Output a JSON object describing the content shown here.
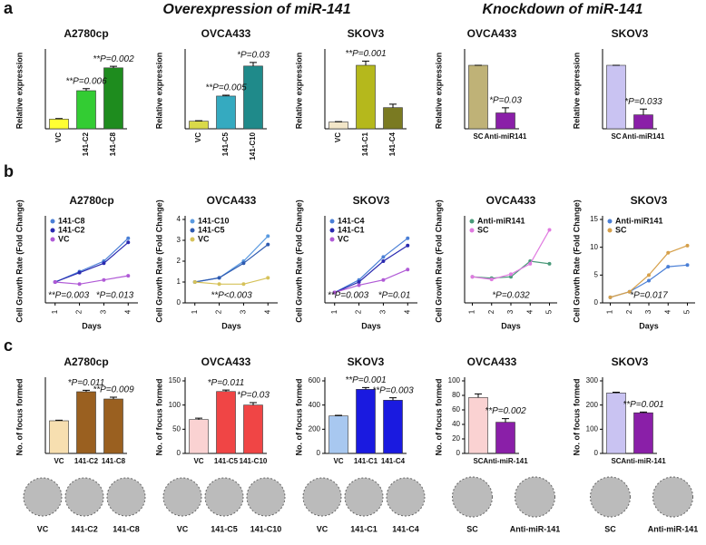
{
  "panel_labels": [
    "a",
    "b",
    "c"
  ],
  "headers": [
    "Overexpression of miR-141",
    "Knockdown of miR-141"
  ],
  "chart_data": [
    {
      "type": "bar",
      "title": "A2780cp",
      "ylabel": "Relative expression",
      "categories": [
        "VC",
        "141-C2",
        "141-C8"
      ],
      "values": [
        1.9,
        7.5,
        12
      ],
      "errors": [
        0.1,
        0.4,
        0.3
      ],
      "colors": [
        "#ffff33",
        "#33cc33",
        "#1e8c1e"
      ],
      "ylim": [
        0,
        15
      ],
      "annotations": [
        "**P=0.006",
        "**P=0.002"
      ]
    },
    {
      "type": "bar",
      "title": "OVCA433",
      "ylabel": "Relative expression",
      "categories": [
        "VC",
        "141-C5",
        "141-C10"
      ],
      "values": [
        1.7,
        7.3,
        14
      ],
      "errors": [
        0.1,
        0.2,
        0.8
      ],
      "colors": [
        "#d9d94a",
        "#35aac0",
        "#1f8a8a"
      ],
      "ylim": [
        0,
        17
      ],
      "annotations": [
        "**P=0.005",
        "*P=0.03"
      ]
    },
    {
      "type": "bar",
      "title": "SKOV3",
      "ylabel": "Relative expression",
      "categories": [
        "VC",
        "141-C1",
        "141-C4"
      ],
      "values": [
        1.6,
        15,
        5
      ],
      "errors": [
        0.1,
        1,
        0.8
      ],
      "colors": [
        "#f2e6c8",
        "#b5b81c",
        "#7a7a22"
      ],
      "ylim": [
        0,
        18
      ],
      "annotations": [
        "**P=0.001"
      ]
    },
    {
      "type": "bar",
      "title": "OVCA433",
      "ylabel": "Relative expression",
      "categories": [
        "SC",
        "Anti-miR141"
      ],
      "values": [
        1.0,
        0.25
      ],
      "errors": [
        0.0,
        0.08
      ],
      "colors": [
        "#bfb277",
        "#8a1fa8"
      ],
      "ylim": [
        0,
        1.2
      ],
      "annotations": [
        "*P=0.03"
      ]
    },
    {
      "type": "bar",
      "title": "SKOV3",
      "ylabel": "Relative expression",
      "categories": [
        "SC",
        "Anti-miR141"
      ],
      "values": [
        1.0,
        0.22
      ],
      "errors": [
        0.0,
        0.09
      ],
      "colors": [
        "#c9c3f2",
        "#8a1fa8"
      ],
      "ylim": [
        0,
        1.2
      ],
      "annotations": [
        "*P=0.033"
      ]
    },
    {
      "type": "line",
      "title": "A2780cp",
      "ylabel": "Cell Growth Rate (Fold Change)",
      "xlabel": "Days",
      "x": [
        1,
        2,
        3,
        4
      ],
      "xticks": [
        1,
        2,
        3,
        4
      ],
      "xlim": [
        0.6,
        4.4
      ],
      "ylim": [
        0,
        4
      ],
      "series": [
        {
          "name": "141-C8",
          "color": "#4a7fd6",
          "values": [
            1,
            1.5,
            2,
            3.1
          ]
        },
        {
          "name": "141-C2",
          "color": "#2a2ab0",
          "values": [
            1,
            1.45,
            1.9,
            2.9
          ]
        },
        {
          "name": "VC",
          "color": "#b05ad6",
          "values": [
            1,
            0.9,
            1.1,
            1.3
          ]
        }
      ],
      "annotations": [
        "**P=0.003",
        "*P=0.013"
      ]
    },
    {
      "type": "line",
      "title": "OVCA433",
      "ylabel": "Cell Growth Rate (Fold Change)",
      "xlabel": "Days",
      "x": [
        1,
        2,
        3,
        4
      ],
      "xticks": [
        1,
        2,
        3,
        4
      ],
      "xlim": [
        0.6,
        4.4
      ],
      "ylim": [
        0,
        4
      ],
      "yticks": [
        0,
        1,
        2,
        3,
        4
      ],
      "series": [
        {
          "name": "141-C10",
          "color": "#5a9ae0",
          "values": [
            1,
            1.2,
            2,
            3.2
          ]
        },
        {
          "name": "141-C5",
          "color": "#2e5ab0",
          "values": [
            1,
            1.2,
            1.9,
            2.8
          ]
        },
        {
          "name": "VC",
          "color": "#d6c25a",
          "values": [
            1,
            0.9,
            0.9,
            1.2
          ]
        }
      ],
      "annotations": [
        "**P<0.003"
      ]
    },
    {
      "type": "line",
      "title": "SKOV3",
      "ylabel": "Cell Growth Rate (Fold Change)",
      "xlabel": "Days",
      "x": [
        1,
        2,
        3,
        4
      ],
      "xticks": [
        1,
        2,
        3,
        4
      ],
      "xlim": [
        0.6,
        4.4
      ],
      "ylim": [
        0,
        8
      ],
      "series": [
        {
          "name": "141-C4",
          "color": "#4a7fd6",
          "values": [
            1,
            2.2,
            4.4,
            6.2
          ]
        },
        {
          "name": "141-C1",
          "color": "#2a2ab0",
          "values": [
            1,
            2,
            4,
            5.5
          ]
        },
        {
          "name": "VC",
          "color": "#b05ad6",
          "values": [
            1,
            1.7,
            2.2,
            3.2
          ]
        }
      ],
      "annotations": [
        "**P=0.003",
        "*P=0.01"
      ]
    },
    {
      "type": "line",
      "title": "OVCA433",
      "ylabel": "Cell Growth Rate (Fold Change)",
      "xlabel": "Days",
      "x": [
        1,
        2,
        3,
        4,
        5
      ],
      "xticks": [
        1,
        2,
        3,
        4,
        5
      ],
      "xlim": [
        0.6,
        5.4
      ],
      "ylim": [
        0,
        3.2
      ],
      "series": [
        {
          "name": "Anti-miR141",
          "color": "#4a9a7a",
          "values": [
            1,
            0.95,
            1,
            1.6,
            1.5
          ]
        },
        {
          "name": "SC",
          "color": "#e07ae0",
          "values": [
            1,
            0.9,
            1.1,
            1.5,
            2.8
          ]
        }
      ],
      "annotations": [
        "*P=0.032"
      ]
    },
    {
      "type": "line",
      "title": "SKOV3",
      "ylabel": "Cell Growth Rate (Fold Change)",
      "xlabel": "Days",
      "x": [
        1,
        2,
        3,
        4,
        5
      ],
      "xticks": [
        1,
        2,
        3,
        4,
        5
      ],
      "xlim": [
        0.6,
        5.4
      ],
      "ylim": [
        0,
        15
      ],
      "yticks": [
        0,
        5,
        10,
        15
      ],
      "series": [
        {
          "name": "Anti-miR141",
          "color": "#4a7fd6",
          "values": [
            1,
            2,
            4,
            6.5,
            6.8
          ]
        },
        {
          "name": "SC",
          "color": "#d6a04a",
          "values": [
            1,
            2,
            5,
            9,
            10.3
          ]
        }
      ],
      "annotations": [
        "*P=0.017"
      ]
    },
    {
      "type": "bar",
      "title": "A2780cp",
      "ylabel": "No. of focus formed",
      "categories": [
        "VC",
        "141-C2",
        "141-C8"
      ],
      "values": [
        180,
        340,
        300
      ],
      "errors": [
        3,
        8,
        10
      ],
      "colors": [
        "#f7dfb0",
        "#9a6020",
        "#9a6020"
      ],
      "ylim": [
        0,
        400
      ],
      "annotations": [
        "*P=0.011",
        "**P=0.009"
      ],
      "photo_labels": [
        "VC",
        "141-C2",
        "141-C8"
      ]
    },
    {
      "type": "bar",
      "title": "OVCA433",
      "ylabel": "No. of focus formed",
      "categories": [
        "VC",
        "141-C5",
        "141-C10"
      ],
      "values": [
        70,
        128,
        100
      ],
      "errors": [
        3,
        3,
        5
      ],
      "colors": [
        "#fad2d2",
        "#f04545",
        "#f04545"
      ],
      "ylim": [
        0,
        150
      ],
      "yticks": [
        0,
        50,
        100,
        150
      ],
      "annotations": [
        "*P=0.011",
        "*P=0.03"
      ],
      "photo_labels": [
        "VC",
        "141-C5",
        "141-C10"
      ]
    },
    {
      "type": "bar",
      "title": "SKOV3",
      "ylabel": "No. of focus formed",
      "categories": [
        "VC",
        "141-C1",
        "141-C4"
      ],
      "values": [
        310,
        530,
        440
      ],
      "errors": [
        5,
        15,
        20
      ],
      "colors": [
        "#a8c8f0",
        "#1a1ae0",
        "#1a1ae0"
      ],
      "ylim": [
        0,
        600
      ],
      "yticks": [
        0,
        200,
        400,
        600
      ],
      "annotations": [
        "**P=0.001",
        "**P=0.003"
      ],
      "photo_labels": [
        "VC",
        "141-C1",
        "141-C4"
      ]
    },
    {
      "type": "bar",
      "title": "OVCA433",
      "ylabel": "No. of focus formed",
      "categories": [
        "SC",
        "Anti-miR-141"
      ],
      "values": [
        77,
        43
      ],
      "errors": [
        5,
        5
      ],
      "colors": [
        "#fad2d2",
        "#8a1fa8"
      ],
      "ylim": [
        0,
        100
      ],
      "yticks": [
        0,
        20,
        40,
        60,
        80,
        100
      ],
      "annotations": [
        "**P=0.002"
      ],
      "photo_labels": [
        "SC",
        "Anti-miR-141"
      ]
    },
    {
      "type": "bar",
      "title": "SKOV3",
      "ylabel": "No. of focus formed",
      "categories": [
        "SC",
        "Anti-miR-141"
      ],
      "values": [
        250,
        168
      ],
      "errors": [
        3,
        3
      ],
      "colors": [
        "#c9c3f2",
        "#8a1fa8"
      ],
      "ylim": [
        0,
        300
      ],
      "yticks": [
        0,
        100,
        200,
        300
      ],
      "annotations": [
        "**P=0.001"
      ],
      "photo_labels": [
        "SC",
        "Anti-miR-141"
      ]
    }
  ]
}
